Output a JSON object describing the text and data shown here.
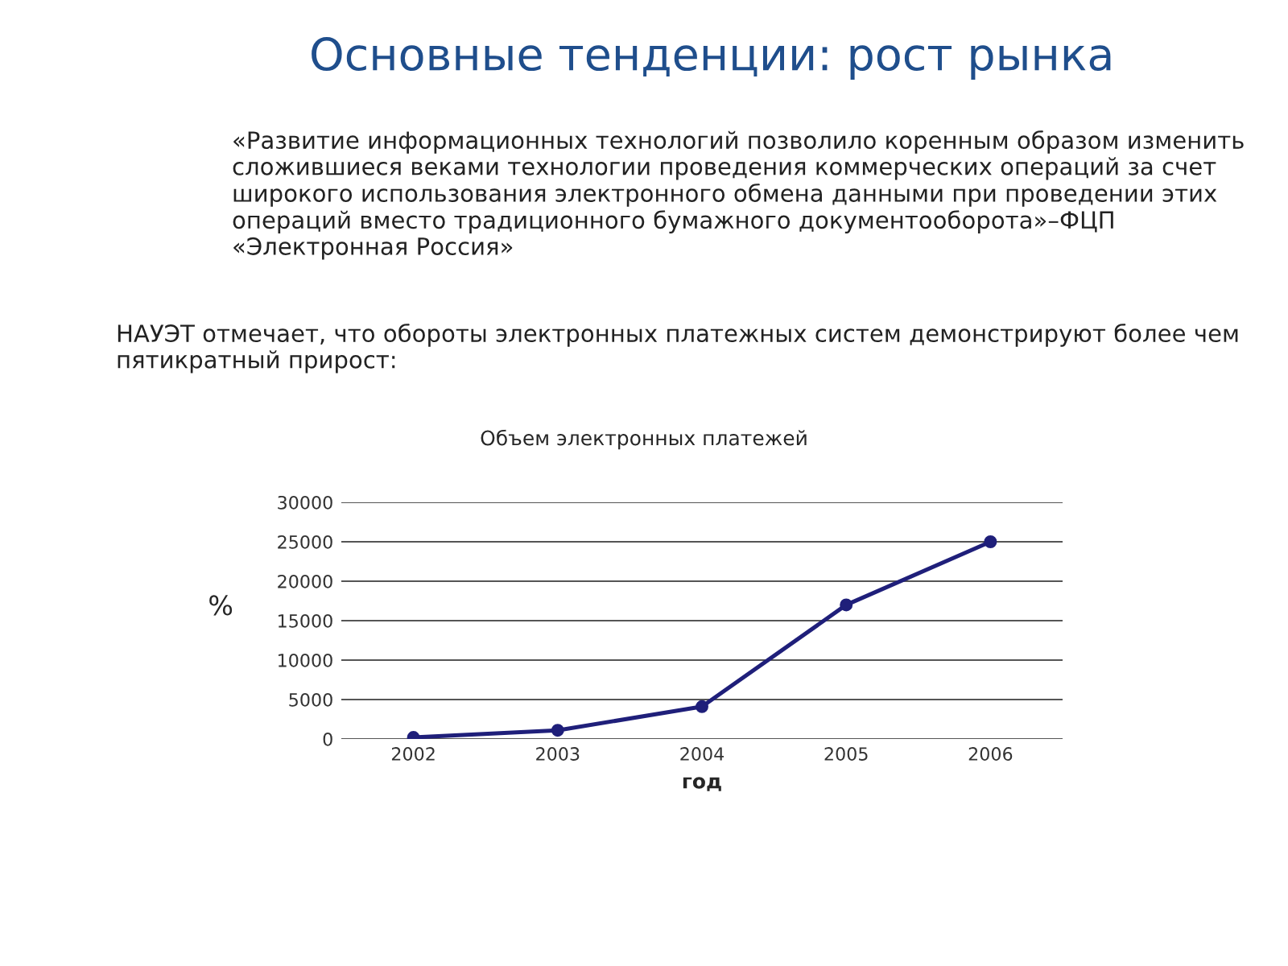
{
  "chart_data": {
    "type": "line",
    "title": "Основные тенденции: рост рынка",
    "subtitle": "Объем электронных платежей",
    "annotations": [
      "«Развитие информационных технологий позволило коренным образом изменить сложившиеся веками технологии проведения коммерческих операций за счет широкого использования электронного обмена данными при проведении этих операций вместо традиционного бумажного документооборота»–ФЦП «Электронная Россия»",
      "НАУЭТ отмечает, что обороты электронных платежных систем демонстрируют более чем пятикратный прирост:"
    ],
    "xlabel": "год",
    "ylabel": "%",
    "categories": [
      "2002",
      "2003",
      "2004",
      "2005",
      "2006"
    ],
    "series": [
      {
        "color": "#1f1f7a",
        "values": [
          200,
          1100,
          4100,
          17000,
          25000
        ]
      }
    ],
    "ylim": [
      0,
      30000
    ],
    "yticks": [
      0,
      5000,
      10000,
      15000,
      20000,
      25000,
      30000
    ],
    "grid": "y",
    "marker": "circle",
    "line_style": "solid"
  }
}
